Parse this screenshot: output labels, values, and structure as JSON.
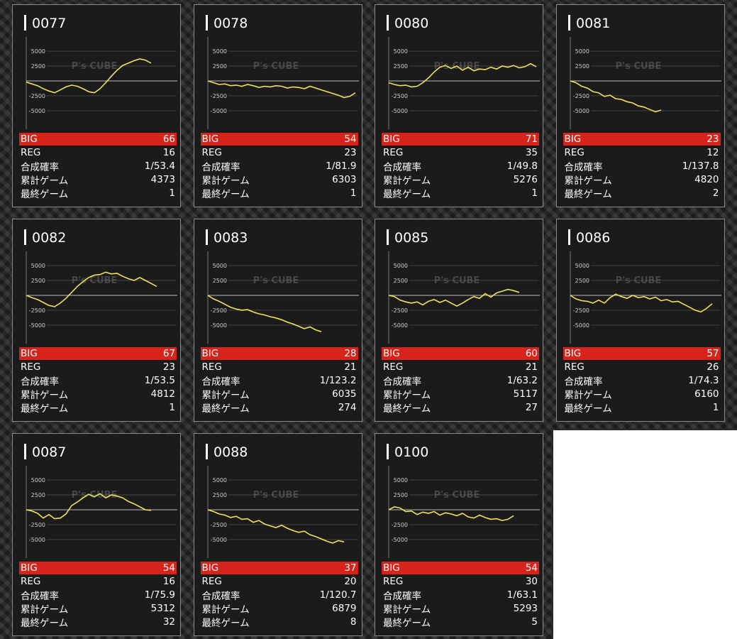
{
  "watermark": "P's CUBE",
  "row_labels": [
    "BIG",
    "REG",
    "合成確率",
    "累計ゲーム",
    "最終ゲーム"
  ],
  "ylim": [
    -8000,
    7400
  ],
  "yticks": [
    5000,
    2500,
    -2500,
    -5000
  ],
  "cards": [
    {
      "id": "0077",
      "stats": [
        66,
        16,
        "1/53.4",
        4373,
        1
      ],
      "chart": {
        "type": "line",
        "values": [
          -200,
          -500,
          -800,
          -1300,
          -1700,
          -2000,
          -1500,
          -1000,
          -700,
          -900,
          -1300,
          -1800,
          -2000,
          -1300,
          -300,
          800,
          1800,
          2600,
          3000,
          3400,
          3700,
          3500,
          3000
        ]
      }
    },
    {
      "id": "0078",
      "stats": [
        54,
        23,
        "1/81.9",
        6303,
        1
      ],
      "chart": {
        "type": "line",
        "values": [
          0,
          -300,
          -600,
          -500,
          -800,
          -700,
          -900,
          -600,
          -800,
          -1100,
          -900,
          -1000,
          -800,
          -900,
          -1200,
          -1000,
          -1100,
          -1300,
          -900,
          -1200,
          -1500,
          -1800,
          -2100,
          -2400,
          -2800,
          -2600,
          -2000
        ]
      }
    },
    {
      "id": "0080",
      "stats": [
        71,
        35,
        "1/49.8",
        5276,
        1
      ],
      "chart": {
        "type": "line",
        "values": [
          -300,
          -600,
          -800,
          -700,
          -1000,
          -900,
          -300,
          500,
          1500,
          2300,
          2600,
          2100,
          2500,
          1800,
          2300,
          1700,
          2000,
          1900,
          2300,
          2000,
          2500,
          2300,
          2600,
          2200,
          2400,
          2900,
          2400
        ]
      }
    },
    {
      "id": "0081",
      "stats": [
        23,
        12,
        "1/137.8",
        4820,
        2
      ],
      "chart": {
        "type": "line",
        "values": [
          0,
          -300,
          -900,
          -1200,
          -1800,
          -2000,
          -2600,
          -2400,
          -3000,
          -3100,
          -3500,
          -3700,
          -4200,
          -4400,
          -4800,
          -5200,
          -4900
        ]
      }
    },
    {
      "id": "0082",
      "stats": [
        67,
        23,
        "1/53.5",
        4812,
        1
      ],
      "chart": {
        "type": "line",
        "values": [
          0,
          -400,
          -700,
          -1200,
          -1700,
          -1900,
          -1300,
          -500,
          500,
          1500,
          2300,
          3000,
          3400,
          3500,
          3900,
          3600,
          3700,
          3200,
          2800,
          2500,
          3000,
          2500,
          2000,
          1500
        ]
      }
    },
    {
      "id": "0083",
      "stats": [
        28,
        21,
        "1/123.2",
        6035,
        274
      ],
      "chart": {
        "type": "line",
        "values": [
          0,
          -600,
          -1000,
          -1500,
          -2000,
          -2300,
          -2500,
          -2400,
          -2800,
          -3100,
          -3300,
          -3600,
          -3800,
          -4100,
          -4500,
          -4800,
          -5200,
          -5600,
          -5300,
          -5800,
          -6100
        ]
      }
    },
    {
      "id": "0085",
      "stats": [
        60,
        21,
        "1/63.2",
        5117,
        27
      ],
      "chart": {
        "type": "line",
        "values": [
          0,
          -200,
          -800,
          -1100,
          -1300,
          -1100,
          -1600,
          -1000,
          -700,
          -1200,
          -800,
          -1300,
          -1800,
          -1300,
          -700,
          -200,
          -500,
          300,
          -300,
          400,
          700,
          1000,
          800,
          500
        ]
      }
    },
    {
      "id": "0086",
      "stats": [
        57,
        26,
        "1/74.3",
        6160,
        1
      ],
      "chart": {
        "type": "line",
        "values": [
          0,
          -600,
          -900,
          -1000,
          -1300,
          -800,
          -1300,
          -400,
          200,
          -200,
          -500,
          0,
          -400,
          -200,
          -600,
          -300,
          -900,
          -700,
          -1100,
          -1000,
          -1500,
          -2000,
          -2500,
          -2800,
          -2200,
          -1400
        ]
      }
    },
    {
      "id": "0087",
      "stats": [
        54,
        16,
        "1/75.9",
        5312,
        32
      ],
      "chart": {
        "type": "line",
        "values": [
          0,
          -200,
          -600,
          -1400,
          -800,
          -1500,
          -1400,
          -700,
          700,
          1300,
          2000,
          2600,
          2200,
          2700,
          2000,
          2500,
          2300,
          2000,
          1400,
          1000,
          500,
          0,
          -100
        ]
      }
    },
    {
      "id": "0088",
      "stats": [
        37,
        20,
        "1/120.7",
        6879,
        8
      ],
      "chart": {
        "type": "line",
        "values": [
          0,
          -300,
          -700,
          -900,
          -1300,
          -1100,
          -1600,
          -1500,
          -2100,
          -1800,
          -2400,
          -2700,
          -3000,
          -2600,
          -3100,
          -3500,
          -3800,
          -3600,
          -4200,
          -4500,
          -4900,
          -5300,
          -5600,
          -5200,
          -5400
        ]
      }
    },
    {
      "id": "0100",
      "stats": [
        54,
        30,
        "1/63.1",
        5293,
        5
      ],
      "chart": {
        "type": "line",
        "values": [
          0,
          500,
          300,
          -300,
          -200,
          -800,
          -400,
          -600,
          -300,
          -900,
          -500,
          -700,
          -1000,
          -600,
          -1200,
          -1400,
          -900,
          -1300,
          -1600,
          -1500,
          -1800,
          -1600,
          -1000
        ]
      }
    }
  ]
}
